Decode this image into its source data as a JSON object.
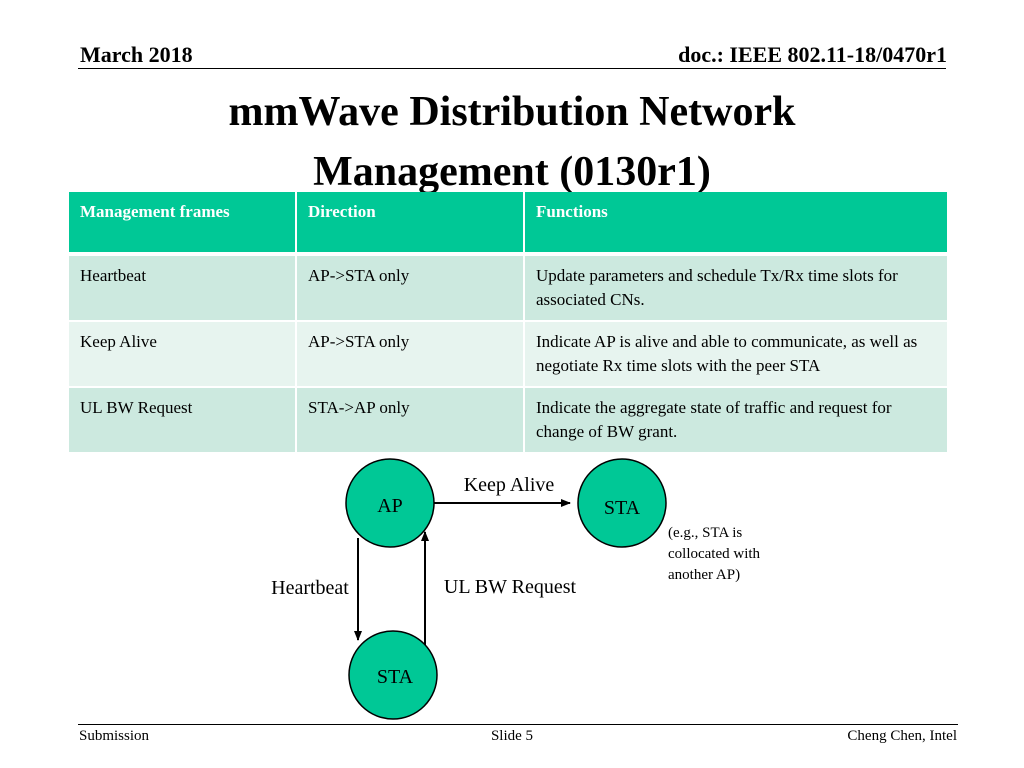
{
  "header": {
    "date": "March  2018",
    "doc": "doc.: IEEE 802.11-18/0470r1"
  },
  "title": {
    "line1": "mmWave Distribution Network",
    "line2": "Management (0130r1)"
  },
  "table": {
    "headers": [
      "Management frames",
      "Direction",
      "Functions"
    ],
    "rows": [
      [
        "Heartbeat",
        "AP->STA only",
        "Update parameters and schedule Tx/Rx time slots for associated CNs."
      ],
      [
        "Keep Alive",
        "AP->STA only",
        "Indicate AP is alive and able to communicate, as well as negotiate Rx time slots with the peer STA"
      ],
      [
        "UL BW Request",
        "STA->AP only",
        "Indicate the aggregate state of traffic and request for change of BW grant."
      ]
    ],
    "header_color": "#00c896",
    "row_colors": [
      "#cce9df",
      "#e7f4ef"
    ]
  },
  "diagram": {
    "node_color": "#00c896",
    "nodes": {
      "ap": "AP",
      "sta_right": "STA",
      "sta_bottom": "STA"
    },
    "edges": {
      "keep_alive": "Keep Alive",
      "heartbeat": "Heartbeat",
      "ul_bw_request": "UL BW Request"
    },
    "note_lines": [
      "(e.g., STA is",
      "collocated with",
      "another AP)"
    ]
  },
  "footer": {
    "left": "Submission",
    "center": "Slide 5",
    "right": "Cheng Chen, Intel"
  }
}
